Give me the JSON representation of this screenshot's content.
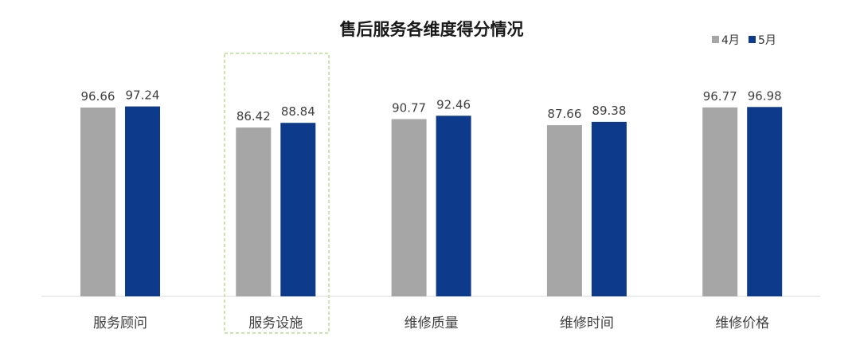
{
  "chart_data": {
    "type": "bar",
    "title": "售后服务各维度得分情况",
    "categories": [
      "服务顾问",
      "服务设施",
      "维修质量",
      "维修时间",
      "维修价格"
    ],
    "series": [
      {
        "name": "4月",
        "color": "#a6a6a6",
        "values": [
          96.66,
          86.42,
          90.77,
          87.66,
          96.77
        ]
      },
      {
        "name": "5月",
        "color": "#0d3a8a",
        "values": [
          97.24,
          88.84,
          92.46,
          89.38,
          96.98
        ]
      }
    ],
    "value_labels": [
      [
        "96.66",
        "86.42",
        "90.77",
        "87.66",
        "96.77"
      ],
      [
        "97.24",
        "88.84",
        "92.46",
        "89.38",
        "96.98"
      ]
    ],
    "highlighted_category": "服务设施",
    "legend_position": "top-right",
    "grid": false,
    "xlabel": "",
    "ylabel": ""
  }
}
